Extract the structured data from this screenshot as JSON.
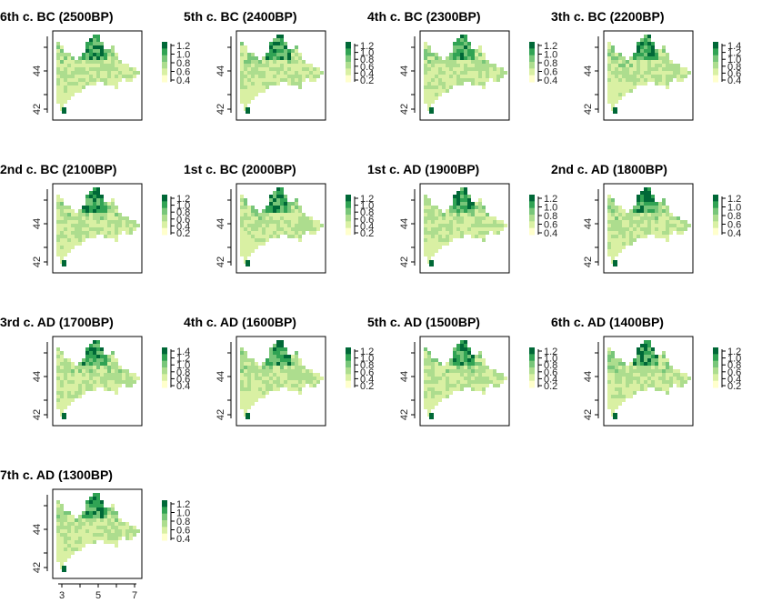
{
  "chart_data": {
    "type": "heatmap",
    "colormap": [
      "#ffffcc",
      "#d9f0a3",
      "#addd8e",
      "#78c679",
      "#31a354",
      "#006837"
    ],
    "x_ticks": [
      "3",
      "5",
      "7"
    ],
    "y_ticks": [
      "42",
      "44"
    ],
    "panels": [
      {
        "title": "6th c. BC (2500BP)",
        "legend": [
          "1.2",
          "1.0",
          "0.8",
          "0.6",
          "0.4"
        ]
      },
      {
        "title": "5th c. BC (2400BP)",
        "legend": [
          "1.2",
          "1.0",
          "0.8",
          "0.6",
          "0.4",
          "0.2"
        ]
      },
      {
        "title": "4th c. BC (2300BP)",
        "legend": [
          "1.2",
          "1.0",
          "0.8",
          "0.6",
          "0.4"
        ]
      },
      {
        "title": "3th c. BC (2200BP)",
        "legend": [
          "1.4",
          "1.2",
          "1.0",
          "0.8",
          "0.6",
          "0.4"
        ]
      },
      {
        "title": "2nd c. BC (2100BP)",
        "legend": [
          "1.2",
          "1.0",
          "0.8",
          "0.6",
          "0.4",
          "0.2"
        ]
      },
      {
        "title": "1st c. BC (2000BP)",
        "legend": [
          "1.2",
          "1.0",
          "0.8",
          "0.6",
          "0.4",
          "0.2"
        ]
      },
      {
        "title": "1st c. AD (1900BP)",
        "legend": [
          "1.2",
          "1.0",
          "0.8",
          "0.6",
          "0.4"
        ]
      },
      {
        "title": "2nd c. AD (1800BP)",
        "legend": [
          "1.2",
          "1.0",
          "0.8",
          "0.6",
          "0.4"
        ]
      },
      {
        "title": "3rd c. AD (1700BP)",
        "legend": [
          "1.4",
          "1.2",
          "1.0",
          "0.8",
          "0.6",
          "0.4"
        ]
      },
      {
        "title": "4th c. AD (1600BP)",
        "legend": [
          "1.2",
          "1.0",
          "0.8",
          "0.6",
          "0.4",
          "0.2"
        ]
      },
      {
        "title": "5th c. AD (1500BP)",
        "legend": [
          "1.2",
          "1.0",
          "0.8",
          "0.6",
          "0.4",
          "0.2"
        ]
      },
      {
        "title": "6th c. AD (1400BP)",
        "legend": [
          "1.2",
          "1.0",
          "0.8",
          "0.6",
          "0.4",
          "0.2"
        ]
      },
      {
        "title": "7th c. AD (1300BP)",
        "legend": [
          "1.2",
          "1.0",
          "0.8",
          "0.6",
          "0.4"
        ]
      }
    ]
  }
}
